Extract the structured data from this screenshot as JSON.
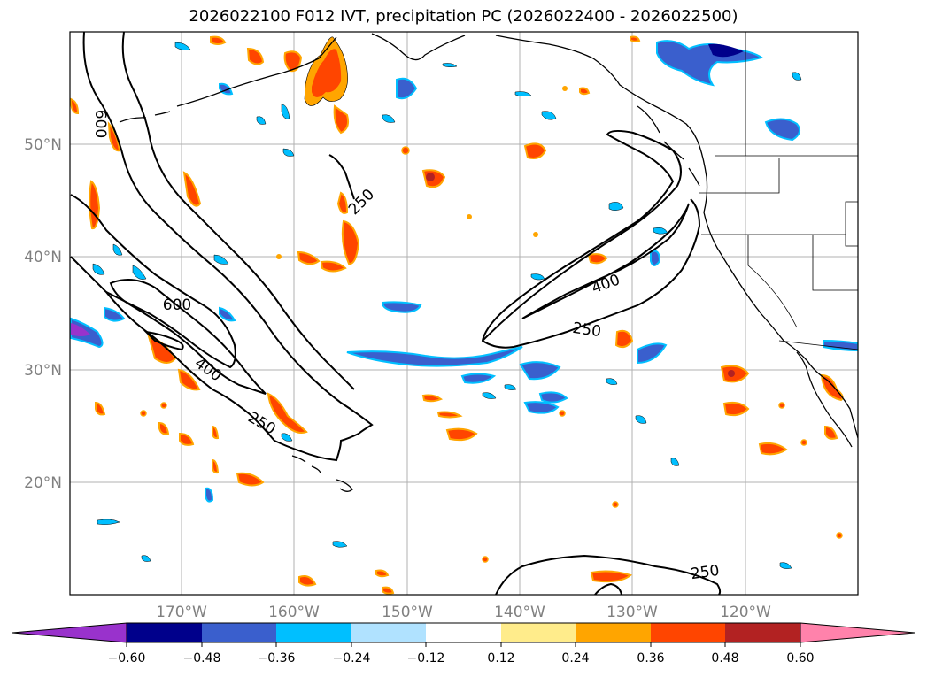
{
  "title": "2026022100 F012 IVT, precipitation PC (2026022400 - 2026022500)",
  "lat_labels": [
    "50°N",
    "40°N",
    "30°N",
    "20°N"
  ],
  "lon_labels": [
    "170°W",
    "160°W",
    "150°W",
    "140°W",
    "130°W",
    "120°W"
  ],
  "contour_labels": [
    "600",
    "250",
    "600",
    "400",
    "250",
    "400",
    "250",
    "250"
  ],
  "colorbar": {
    "ticks": [
      "−0.60",
      "−0.48",
      "−0.36",
      "−0.24",
      "−0.12",
      "0.12",
      "0.24",
      "0.36",
      "0.48",
      "0.60"
    ],
    "colors": [
      "#9932cc",
      "#00008b",
      "#3a5fcd",
      "#00bfff",
      "#b0e2ff",
      "#ffffff",
      "#ffec8b",
      "#ffa500",
      "#ff4500",
      "#b22222",
      "#ff82ab"
    ]
  },
  "colors": {
    "neg_strong": "#3a5fcd",
    "neg_mid": "#00bfff",
    "neg_light": "#b0e2ff",
    "neg_dark": "#00008b",
    "neg_purple": "#9932cc",
    "pos_light": "#ffec8b",
    "pos_mid": "#ffa500",
    "pos_strong": "#ff4500",
    "pos_dark": "#b22222"
  }
}
